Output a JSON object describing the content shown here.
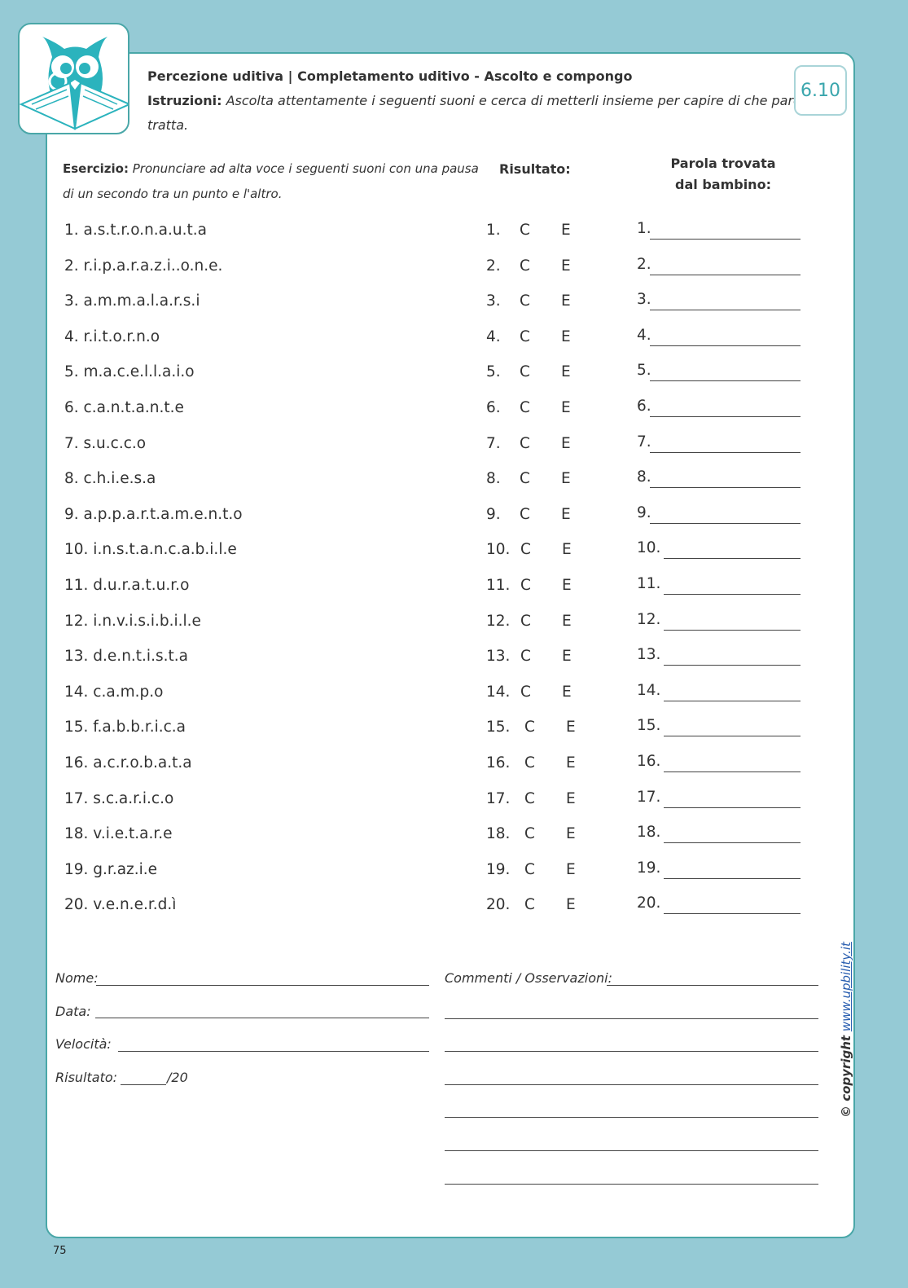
{
  "header": {
    "title": "Percezione uditiva | Completamento uditivo - Ascolto e compongo",
    "instructions_label": "Istruzioni:",
    "instructions_line1": "Ascolta attentamente i seguenti suoni e cerca di metterli insieme per capire di che parola si",
    "instructions_line2": "tratta.",
    "badge": "6.10"
  },
  "colors": {
    "background": "#95cad5",
    "accent": "#4aa7a8",
    "logo_owl": "#2bb3bd"
  },
  "exercise": {
    "label": "Esercizio:",
    "text_line1": "Pronunciare ad alta voce i seguenti suoni con una pausa",
    "text_line2": "di un secondo tra un punto e l'altro.",
    "result_header": "Risultato:",
    "word_header_line1": "Parola trovata",
    "word_header_line2": "dal bambino:",
    "correct_label": "C",
    "error_label": "E",
    "items": [
      "a.s.t.r.o.n.a.u.t.a",
      "r.i.p.a.r.a.z.i..o.n.e.",
      "a.m.m.a.l.a.r.s.i",
      "r.i.t.o.r.n.o",
      "m.a.c.e.l.l.a.i.o",
      "c.a.n.t.a.n.t.e",
      "s.u.c.c.o",
      "c.h.i.e.s.a",
      "a.p.p.a.r.t.a.m.e.n.t.o",
      "i.n.s.t.a.n.c.a.b.i.l.e",
      "d.u.r.a.t.u.r.o",
      "i.n.v.i.s.i.b.i.l.e",
      "d.e.n.t.i.s.t.a",
      "c.a.m.p.o",
      "f.a.b.b.r.i.c.a",
      "a.c.r.o.b.a.t.a",
      "s.c.a.r.i.c.o",
      "v.i.e.t.a.r.e",
      "g.r.az.i.e",
      "v.e.n.e.r.d.ì"
    ]
  },
  "footer": {
    "name_label": "Nome:",
    "date_label": "Data:",
    "speed_label": "Velocità:",
    "result_label": "Risultato:",
    "result_total": "/20",
    "comments_label": "Commenti / Osservazioni:"
  },
  "copyright": {
    "label": "© copyright",
    "url": "www.upbility.it"
  },
  "page_number": "75"
}
